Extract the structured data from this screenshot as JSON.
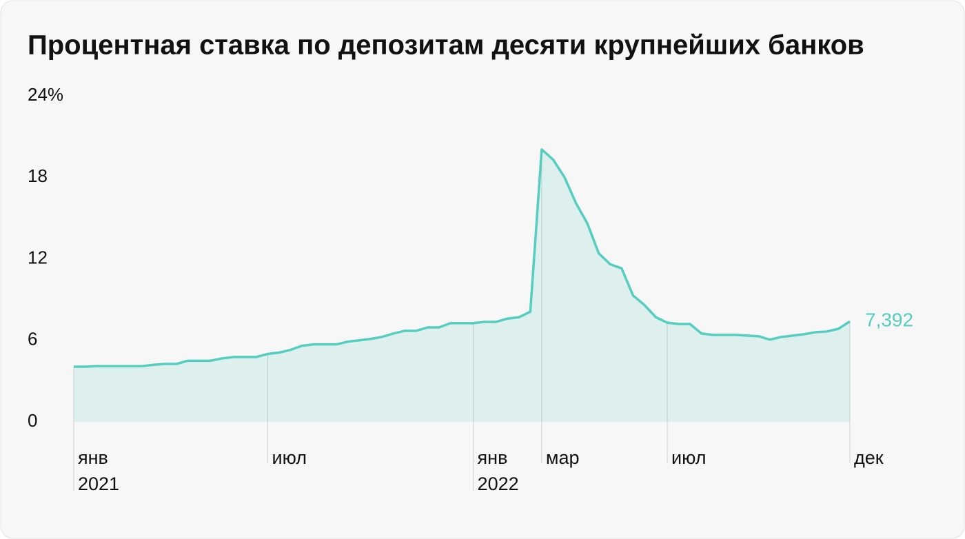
{
  "chart_data": {
    "type": "line",
    "title": "Процентная ставка по депозитам десяти крупнейших банков",
    "categories": [
      "янв\n2021",
      null,
      null,
      null,
      null,
      null,
      null,
      null,
      null,
      null,
      null,
      null,
      null,
      null,
      null,
      null,
      null,
      "июл",
      null,
      null,
      null,
      null,
      null,
      null,
      null,
      null,
      null,
      null,
      null,
      null,
      null,
      null,
      null,
      null,
      null,
      "янв\n2022",
      null,
      null,
      null,
      null,
      null,
      "мар",
      null,
      null,
      null,
      null,
      null,
      null,
      null,
      null,
      null,
      null,
      "июл",
      null,
      null,
      null,
      null,
      null,
      null,
      null,
      null,
      null,
      null,
      null,
      null,
      null,
      null,
      null,
      "дек"
    ],
    "series": [
      {
        "name": null,
        "color": "#55cdc0",
        "values": [
          4.06,
          4.06,
          4.1,
          4.1,
          4.1,
          4.1,
          4.1,
          4.2,
          4.26,
          4.26,
          4.5,
          4.5,
          4.5,
          4.67,
          4.77,
          4.77,
          4.77,
          5.0,
          5.1,
          5.3,
          5.6,
          5.7,
          5.7,
          5.7,
          5.9,
          6.0,
          6.1,
          6.25,
          6.5,
          6.7,
          6.7,
          6.95,
          6.95,
          7.26,
          7.26,
          7.26,
          7.36,
          7.36,
          7.6,
          7.7,
          8.1,
          20.05,
          19.3,
          18.0,
          16.1,
          14.6,
          12.4,
          11.6,
          11.3,
          9.3,
          8.6,
          7.7,
          7.3,
          7.2,
          7.2,
          6.5,
          6.4,
          6.4,
          6.4,
          6.35,
          6.3,
          6.05,
          6.25,
          6.35,
          6.45,
          6.6,
          6.65,
          6.85,
          7.392
        ],
        "value_labels": [
          null,
          null,
          null,
          null,
          null,
          null,
          null,
          null,
          null,
          null,
          null,
          null,
          null,
          null,
          null,
          null,
          null,
          null,
          null,
          null,
          null,
          null,
          null,
          null,
          null,
          null,
          null,
          null,
          null,
          null,
          null,
          null,
          null,
          null,
          null,
          null,
          null,
          null,
          null,
          null,
          null,
          null,
          null,
          null,
          null,
          null,
          null,
          null,
          null,
          null,
          null,
          null,
          null,
          null,
          null,
          null,
          null,
          null,
          null,
          null,
          null,
          null,
          null,
          null,
          null,
          null,
          null,
          null,
          "7,392"
        ]
      }
    ],
    "ylim": [
      0,
      24
    ],
    "yticks": [
      0,
      6,
      12,
      18,
      {
        "value": 24,
        "label": "24%"
      }
    ],
    "grid": false,
    "area": true
  }
}
